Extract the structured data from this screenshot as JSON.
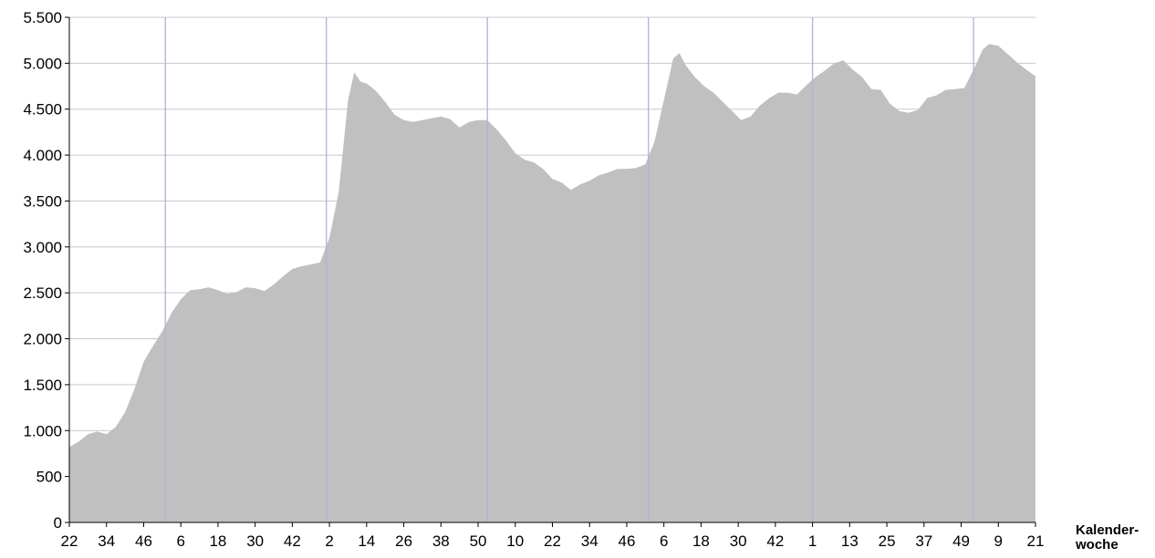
{
  "chart_data": {
    "type": "area",
    "xlabel": "Kalender-woche",
    "xlabel_lines": [
      "Kalender-",
      "woche"
    ],
    "ylabel": "",
    "ylim": [
      0,
      5500
    ],
    "y_ticks": [
      0,
      500,
      1000,
      1500,
      2000,
      2500,
      3000,
      3500,
      4000,
      4500,
      5000,
      5500
    ],
    "y_tick_labels": [
      "0",
      "500",
      "1.000",
      "1.500",
      "2.000",
      "2.500",
      "3.000",
      "3.500",
      "4.000",
      "4.500",
      "5.000",
      "5.500"
    ],
    "x_tick_labels": [
      "22",
      "34",
      "46",
      "6",
      "18",
      "30",
      "42",
      "2",
      "14",
      "26",
      "38",
      "50",
      "10",
      "22",
      "34",
      "46",
      "6",
      "18",
      "30",
      "42",
      "1",
      "13",
      "25",
      "37",
      "49",
      "9",
      "21"
    ],
    "x_tick_index": [
      0,
      12,
      24,
      36,
      48,
      60,
      72,
      84,
      96,
      108,
      120,
      132,
      144,
      156,
      168,
      180,
      192,
      204,
      216,
      228,
      240,
      252,
      264,
      276,
      288,
      300,
      312
    ],
    "year_boundary_index": [
      31,
      83,
      135,
      187,
      240,
      292
    ],
    "grid": true,
    "fill_color": "#c0c0c0",
    "boundary_color": "#a9b6d2",
    "grid_color": "#c8c8c8",
    "series": [
      {
        "points": [
          [
            0,
            820
          ],
          [
            3,
            880
          ],
          [
            6,
            960
          ],
          [
            9,
            990
          ],
          [
            12,
            960
          ],
          [
            15,
            1040
          ],
          [
            18,
            1200
          ],
          [
            21,
            1450
          ],
          [
            24,
            1750
          ],
          [
            27,
            1920
          ],
          [
            30,
            2080
          ],
          [
            33,
            2280
          ],
          [
            36,
            2430
          ],
          [
            39,
            2530
          ],
          [
            42,
            2540
          ],
          [
            45,
            2560
          ],
          [
            48,
            2530
          ],
          [
            51,
            2490
          ],
          [
            54,
            2510
          ],
          [
            57,
            2560
          ],
          [
            60,
            2550
          ],
          [
            63,
            2520
          ],
          [
            66,
            2590
          ],
          [
            69,
            2680
          ],
          [
            72,
            2760
          ],
          [
            75,
            2790
          ],
          [
            78,
            2810
          ],
          [
            81,
            2830
          ],
          [
            84,
            3100
          ],
          [
            87,
            3600
          ],
          [
            90,
            4600
          ],
          [
            92,
            4900
          ],
          [
            94,
            4800
          ],
          [
            96,
            4780
          ],
          [
            99,
            4700
          ],
          [
            102,
            4580
          ],
          [
            105,
            4440
          ],
          [
            108,
            4380
          ],
          [
            111,
            4360
          ],
          [
            114,
            4380
          ],
          [
            117,
            4400
          ],
          [
            120,
            4420
          ],
          [
            123,
            4390
          ],
          [
            126,
            4300
          ],
          [
            129,
            4360
          ],
          [
            132,
            4380
          ],
          [
            135,
            4380
          ],
          [
            138,
            4280
          ],
          [
            141,
            4160
          ],
          [
            144,
            4020
          ],
          [
            147,
            3950
          ],
          [
            150,
            3920
          ],
          [
            153,
            3850
          ],
          [
            156,
            3740
          ],
          [
            159,
            3700
          ],
          [
            162,
            3620
          ],
          [
            165,
            3680
          ],
          [
            168,
            3720
          ],
          [
            171,
            3780
          ],
          [
            174,
            3810
          ],
          [
            177,
            3850
          ],
          [
            180,
            3850
          ],
          [
            183,
            3860
          ],
          [
            186,
            3900
          ],
          [
            189,
            4150
          ],
          [
            192,
            4600
          ],
          [
            195,
            5050
          ],
          [
            197,
            5110
          ],
          [
            199,
            4980
          ],
          [
            202,
            4850
          ],
          [
            205,
            4750
          ],
          [
            208,
            4680
          ],
          [
            211,
            4580
          ],
          [
            214,
            4480
          ],
          [
            217,
            4380
          ],
          [
            220,
            4420
          ],
          [
            223,
            4540
          ],
          [
            226,
            4620
          ],
          [
            229,
            4680
          ],
          [
            232,
            4680
          ],
          [
            235,
            4660
          ],
          [
            238,
            4760
          ],
          [
            241,
            4850
          ],
          [
            244,
            4920
          ],
          [
            247,
            5000
          ],
          [
            250,
            5030
          ],
          [
            253,
            4930
          ],
          [
            256,
            4850
          ],
          [
            259,
            4720
          ],
          [
            262,
            4710
          ],
          [
            265,
            4560
          ],
          [
            268,
            4480
          ],
          [
            271,
            4460
          ],
          [
            274,
            4490
          ],
          [
            277,
            4620
          ],
          [
            280,
            4650
          ],
          [
            283,
            4710
          ],
          [
            286,
            4720
          ],
          [
            289,
            4730
          ],
          [
            292,
            4930
          ],
          [
            295,
            5150
          ],
          [
            297,
            5210
          ],
          [
            300,
            5190
          ],
          [
            303,
            5100
          ],
          [
            306,
            5010
          ],
          [
            309,
            4930
          ],
          [
            312,
            4860
          ]
        ]
      }
    ]
  }
}
